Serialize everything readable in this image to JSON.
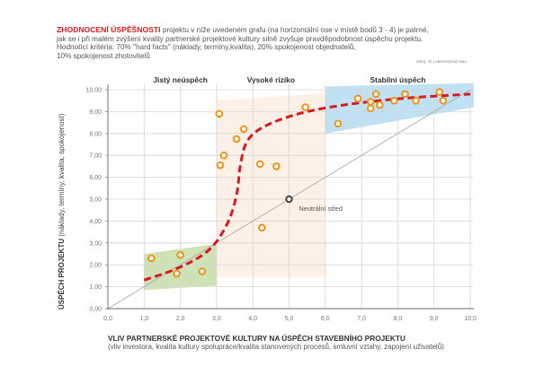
{
  "intro": {
    "highlight": "ZHODNOCENÍ ÚSPĚŠNOSTI",
    "line1": " projektu v níže uvedeném grafu (na horizontální ose v místě bodů 3 - 4) je patrné,",
    "line2": "jak se i při malém zvýšení kvality partnerské projektové kultury silně zvyšuje pravděpodobnost úspěchu projektu.",
    "line3": "Hodnotící kritéria: 70% \"hard facts\" (náklady, termíny,kvalita), 20% spokojenost objednatelů,",
    "line4": "10% spokojenost zhotovitelů"
  },
  "source": "zdroj: IO Lebenszyklus Bau",
  "colors": {
    "accent_red": "#d71920",
    "point_orange": "#e8951a",
    "zone_green": "#c9dfad",
    "zone_orange": "#fdf0e4",
    "zone_blue": "#b5dcf2",
    "neutral_point": "#444444"
  },
  "chart_data": {
    "type": "scatter",
    "title": "",
    "xlabel": "VLIV PARTNERSKÉ PROJEKTOVÉ KULTURY NA ÚSPĚCH STAVEBNÍHO PROJEKTU",
    "xlabel_sub": "(vliv investora, kvalita kultury spolupráce/kvalita stanovených procesů, smluvní vztahy, zapojení uživatelů)",
    "ylabel_bold": "ÚSPĚCH PROJEKTU",
    "ylabel_rest": " (náklady, termíny, kvalita, spokojenost)",
    "xlim": [
      0,
      10
    ],
    "ylim": [
      0,
      10
    ],
    "xticks": [
      "0,0",
      "1,0",
      "2,0",
      "3,0",
      "4,0",
      "5,0",
      "6,0",
      "7,0",
      "8,0",
      "9,0",
      "10,0"
    ],
    "yticks": [
      "0,00",
      "1,00",
      "2,00",
      "3,00",
      "4,00",
      "5,00",
      "6,00",
      "7,00",
      "8,00",
      "9,00",
      "10,00"
    ],
    "grid": true,
    "zones": [
      {
        "label": "Jistý neúspěch",
        "label_x": 2.0
      },
      {
        "label": "Vysoké riziko",
        "label_x": 4.5
      },
      {
        "label": "Stabilní úspěch",
        "label_x": 8.0
      }
    ],
    "regions": [
      {
        "name": "green",
        "polygon": [
          [
            1.0,
            2.5
          ],
          [
            3.0,
            2.95
          ],
          [
            3.0,
            1.05
          ],
          [
            1.0,
            0.85
          ]
        ]
      },
      {
        "name": "orange",
        "polygon": [
          [
            3.0,
            9.5
          ],
          [
            6.0,
            9.85
          ],
          [
            6.0,
            1.45
          ],
          [
            3.0,
            1.45
          ]
        ]
      },
      {
        "name": "blue",
        "polygon": [
          [
            6.0,
            10.15
          ],
          [
            10.1,
            10.3
          ],
          [
            10.1,
            9.2
          ],
          [
            6.0,
            8.0
          ]
        ]
      }
    ],
    "series": [
      {
        "name": "projects",
        "points": [
          [
            1.2,
            2.3
          ],
          [
            2.0,
            2.45
          ],
          [
            1.9,
            1.6
          ],
          [
            2.6,
            1.7
          ],
          [
            3.07,
            8.9
          ],
          [
            3.75,
            8.2
          ],
          [
            3.55,
            7.75
          ],
          [
            3.2,
            7.0
          ],
          [
            3.1,
            6.55
          ],
          [
            4.2,
            6.6
          ],
          [
            4.65,
            6.5
          ],
          [
            4.25,
            3.7
          ],
          [
            5.45,
            9.2
          ],
          [
            6.35,
            8.45
          ],
          [
            6.9,
            9.6
          ],
          [
            7.4,
            9.8
          ],
          [
            7.25,
            9.45
          ],
          [
            7.25,
            9.15
          ],
          [
            7.5,
            9.3
          ],
          [
            7.9,
            9.5
          ],
          [
            8.2,
            9.8
          ],
          [
            8.5,
            9.5
          ],
          [
            9.15,
            9.9
          ],
          [
            9.25,
            9.5
          ]
        ]
      },
      {
        "name": "trend",
        "style": "dashed-red",
        "points": [
          [
            1.0,
            1.3
          ],
          [
            2.0,
            1.9
          ],
          [
            2.8,
            2.7
          ],
          [
            3.3,
            3.9
          ],
          [
            3.55,
            5.2
          ],
          [
            3.65,
            6.5
          ],
          [
            3.8,
            7.5
          ],
          [
            4.1,
            8.1
          ],
          [
            4.7,
            8.6
          ],
          [
            5.5,
            9.0
          ],
          [
            6.5,
            9.3
          ],
          [
            7.5,
            9.5
          ],
          [
            8.5,
            9.65
          ],
          [
            10.0,
            9.8
          ]
        ]
      },
      {
        "name": "diagonal",
        "points": [
          [
            0,
            0
          ],
          [
            10,
            10
          ]
        ]
      }
    ],
    "neutral_point": {
      "x": 5.0,
      "y": 5.0,
      "label": "Neutrální střed"
    }
  }
}
